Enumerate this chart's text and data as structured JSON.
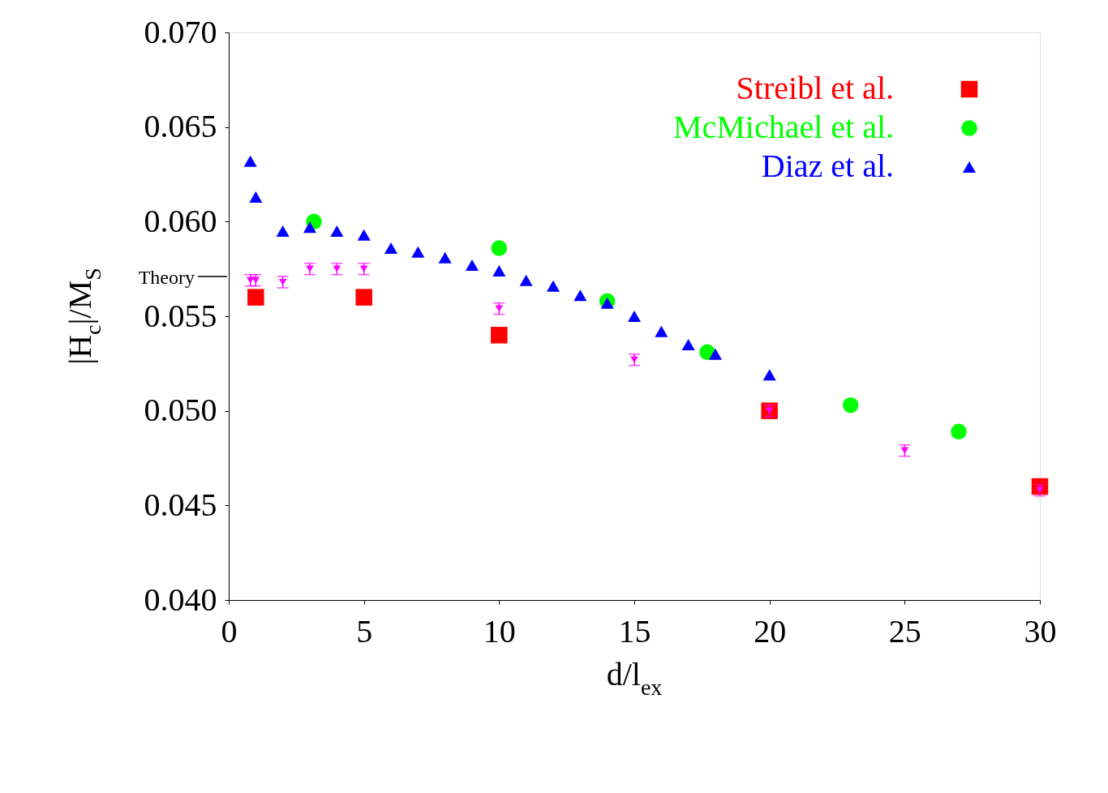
{
  "chart_data": {
    "type": "scatter",
    "xlabel": "d/l$_{ex}$",
    "ylabel": "|H$_{c}$|/M$_{S}$",
    "xlim": [
      0,
      30
    ],
    "xticks": [
      0,
      5,
      10,
      15,
      20,
      25,
      30
    ],
    "ylim": [
      0.04,
      0.07
    ],
    "yticks": [
      {
        "value": 0.04,
        "label": "0.040"
      },
      0.045,
      {
        "value": 0.05,
        "label": "0.050"
      },
      0.055,
      {
        "value": 0.06,
        "label": "0.060"
      },
      0.065,
      {
        "value": 0.07,
        "label": "0.070"
      }
    ],
    "grid": false,
    "legend": "top right",
    "ref_lines": [
      {
        "axis": "y",
        "value": 0.0571,
        "label": "Theory"
      }
    ],
    "series": [
      {
        "name": "Streibl et al.",
        "color": "#ff0000",
        "marker": "square",
        "x": [
          1,
          5,
          10,
          20,
          30
        ],
        "values": [
          0.056,
          0.056,
          0.054,
          0.05,
          0.046
        ]
      },
      {
        "name": "McMichael et al.",
        "color": "#00ff00",
        "marker": "circle",
        "x": [
          3.15,
          10,
          14,
          17.7,
          23,
          27
        ],
        "values": [
          0.06,
          0.0586,
          0.0558,
          0.0531,
          0.0503,
          0.0489
        ]
      },
      {
        "name": "Diaz et al.",
        "color": "#0000ff",
        "marker": "triangle",
        "x": [
          0.8,
          1,
          2,
          3,
          4,
          5,
          6,
          7,
          8,
          9,
          10,
          11,
          12,
          13,
          14,
          15,
          16,
          17,
          18,
          20
        ],
        "values": [
          0.0632,
          0.0613,
          0.0595,
          0.0597,
          0.0595,
          0.0593,
          0.0586,
          0.0584,
          0.0581,
          0.0577,
          0.0574,
          0.0569,
          0.0566,
          0.0561,
          0.0557,
          0.055,
          0.0542,
          0.0535,
          0.053,
          0.0519
        ]
      },
      {
        "color": "#ff00ff",
        "marker": "triangle-down",
        "x": [
          0.8,
          1,
          2,
          3,
          4,
          5,
          10,
          15,
          20,
          25,
          30
        ],
        "values": [
          0.0569,
          0.0569,
          0.0568,
          0.0575,
          0.0575,
          0.0575,
          0.0554,
          0.0527,
          0.05,
          0.0479,
          0.0458
        ],
        "errors": [
          0.0003,
          0.0003,
          0.0003,
          0.0003,
          0.0003,
          0.0003,
          0.0003,
          0.0003,
          0.0003,
          0.0003,
          0.0003
        ]
      }
    ]
  }
}
